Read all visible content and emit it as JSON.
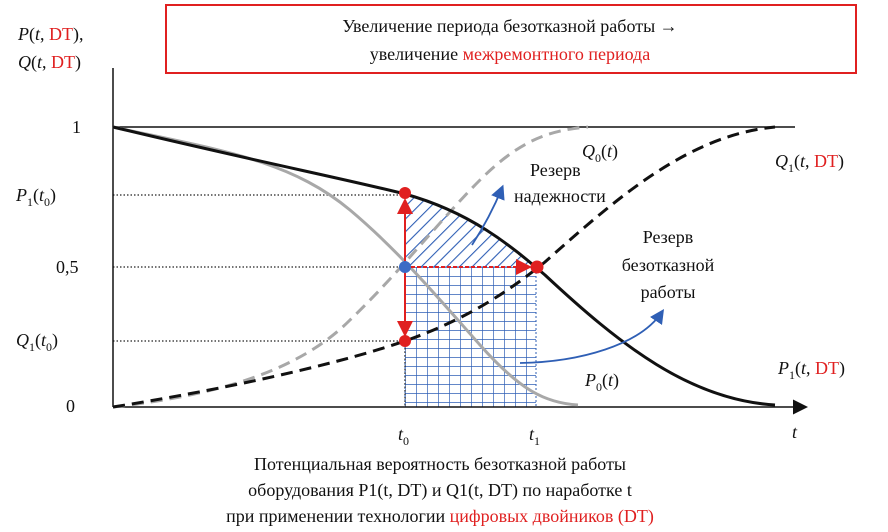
{
  "banner": {
    "line1": "Увеличение периода безотказной работы →",
    "line2_prefix": "увеличение ",
    "line2_highlight": "межремонтного периода"
  },
  "axis": {
    "y_label_p": "P",
    "y_label_q": "Q",
    "t": "t",
    "dt": "DT",
    "ticks_y": {
      "one": "1",
      "half": "0,5",
      "zero": "0",
      "p1t0": "P",
      "q1t0": "Q",
      "sub1": "1",
      "sub0": "0"
    },
    "ticks_x": {
      "t0": "t",
      "t1": "t",
      "sub0": "0",
      "sub1": "1"
    },
    "x_label": "t"
  },
  "curves": {
    "q0": "Q",
    "q1": "Q",
    "p0": "P",
    "p1": "P",
    "sub0": "0",
    "sub1": "1"
  },
  "annotations": {
    "reserve_reliability_1": "Резерв",
    "reserve_reliability_2": "надежности",
    "reserve_uptime_1": "Резерв",
    "reserve_uptime_2": "безотказной",
    "reserve_uptime_3": "работы"
  },
  "caption": {
    "line1": "Потенциальная вероятность безотказной работы",
    "line2": "оборудования P1(t, DT) и Q1(t, DT) по наработке t",
    "line3_prefix": "при применении технологии ",
    "line3_highlight": "цифровых двойников (DT)"
  },
  "colors": {
    "red": "#e02020",
    "blue": "#2f5fb5",
    "gray": "#a8a8a8"
  }
}
